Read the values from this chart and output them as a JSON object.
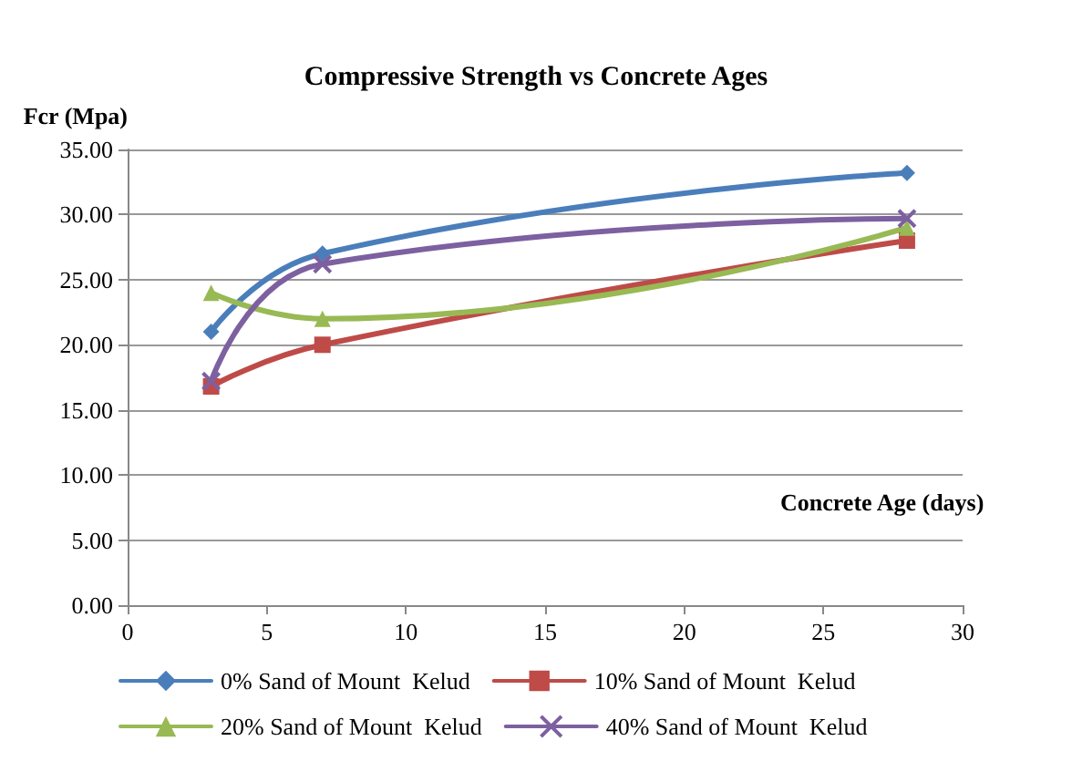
{
  "chart_data": {
    "type": "line",
    "title": "Compressive Strength vs Concrete Ages",
    "xlabel": "Concrete Age (days)",
    "ylabel": "Fcr (Mpa)",
    "x": [
      3,
      7,
      28
    ],
    "series": [
      {
        "name": "0% Sand of Mount  Kelud",
        "color": "#4a7ebb",
        "marker": "diamond",
        "values": [
          21,
          27,
          33.2
        ]
      },
      {
        "name": "10% Sand of Mount  Kelud",
        "color": "#be4b48",
        "marker": "square",
        "values": [
          16.8,
          20,
          28
        ]
      },
      {
        "name": "20% Sand of Mount  Kelud",
        "color": "#98b954",
        "marker": "triangle",
        "values": [
          24,
          22,
          29
        ]
      },
      {
        "name": "40% Sand of Mount  Kelud",
        "color": "#7d60a0",
        "marker": "cross",
        "values": [
          17.2,
          26.2,
          29.7
        ]
      }
    ],
    "xlim": [
      0,
      30
    ],
    "xticks": [
      0,
      5,
      10,
      15,
      20,
      25,
      30
    ],
    "ylim": [
      0,
      35
    ],
    "yticks": [
      {
        "value": 0,
        "label": "0.00"
      },
      {
        "value": 5,
        "label": "5.00"
      },
      {
        "value": 10,
        "label": "10.00"
      },
      {
        "value": 15,
        "label": "15.00"
      },
      {
        "value": 20,
        "label": "20.00"
      },
      {
        "value": 25,
        "label": "25.00"
      },
      {
        "value": 30,
        "label": "30.00"
      },
      {
        "value": 35,
        "label": "35.00"
      }
    ],
    "grid": "y",
    "legend": "bottom",
    "line_style": "solid"
  }
}
